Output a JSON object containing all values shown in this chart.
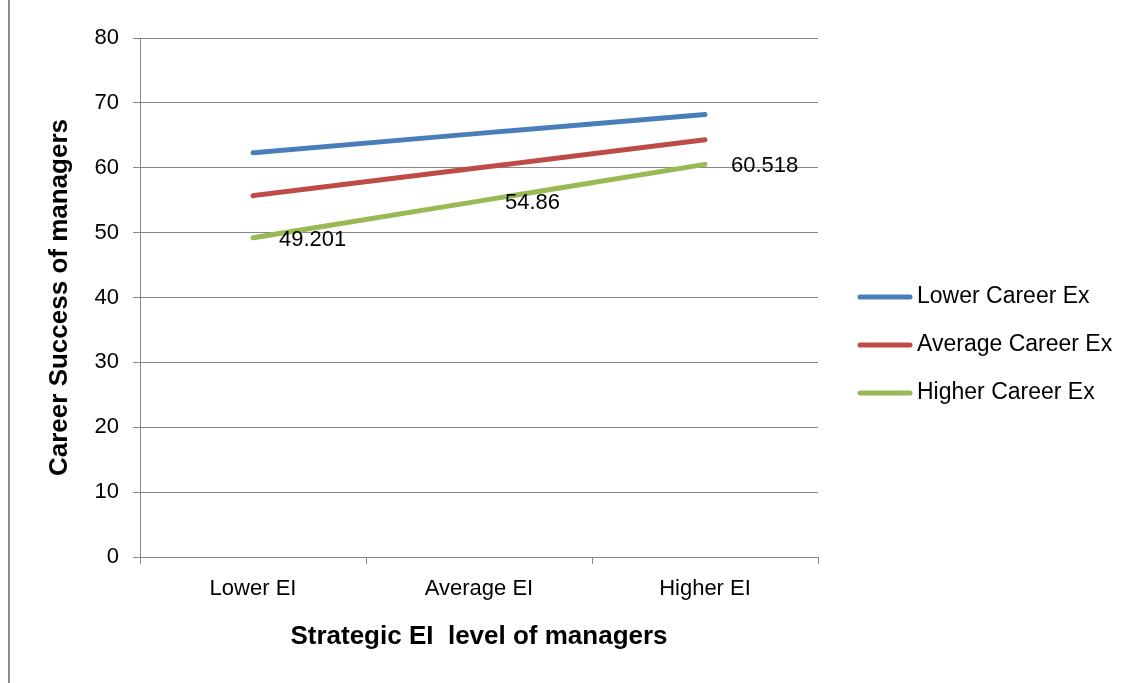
{
  "chart_data": {
    "type": "line",
    "xlabel": "Strategic EI  level of managers",
    "ylabel": "Career Success of managers",
    "categories": [
      "Lower EI",
      "Average EI",
      "Higher EI"
    ],
    "series": [
      {
        "name": "Lower Career Ex",
        "color": "#4a7ebb",
        "values": [
          62.3,
          65.3,
          68.2
        ]
      },
      {
        "name": "Average Career Ex",
        "color": "#be4b48",
        "values": [
          55.7,
          60.0,
          64.3
        ]
      },
      {
        "name": "Higher Career Ex",
        "color": "#98b954",
        "values": [
          49.201,
          54.86,
          60.518
        ],
        "value_labels": [
          "49.201",
          "54.86",
          "60.518"
        ]
      }
    ],
    "ylim": [
      0,
      80
    ],
    "yticks": [
      0,
      10,
      20,
      30,
      40,
      50,
      60,
      70,
      80
    ],
    "grid": "y",
    "legend": "right",
    "marker": "none",
    "line_style": "solid"
  }
}
